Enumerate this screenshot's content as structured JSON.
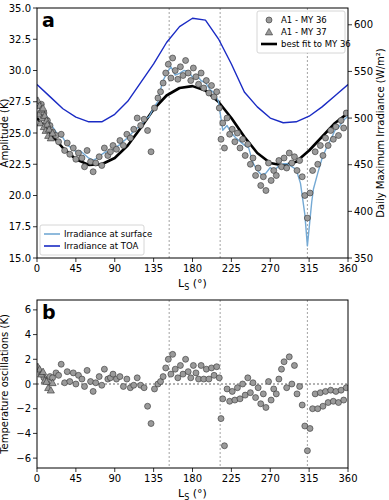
{
  "chart_data": [
    {
      "type": "scatter",
      "title": "a",
      "x_label": "LS (°)",
      "y_label": "Amplitude (K)",
      "y2_label": "Daily Maximum Irradiance (W/m²)",
      "xlim": [
        0,
        360
      ],
      "xticks": [
        0,
        45,
        90,
        135,
        180,
        225,
        270,
        315,
        360
      ],
      "ylim": [
        15,
        35
      ],
      "yticks": [
        {
          "value": 15,
          "label": "15.0"
        },
        {
          "value": 17.5,
          "label": "17.5"
        },
        {
          "value": 20,
          "label": "20.0"
        },
        {
          "value": 22.5,
          "label": "22.5"
        },
        {
          "value": 25,
          "label": "25.0"
        },
        {
          "value": 27.5,
          "label": "27.5"
        },
        {
          "value": 30,
          "label": "30.0"
        },
        {
          "value": 32.5,
          "label": "32.5"
        },
        {
          "value": 35,
          "label": "35.0"
        }
      ],
      "y2lim": [
        350,
        618
      ],
      "y2ticks": [
        350,
        400,
        450,
        500,
        550,
        600
      ],
      "vlines": [
        153,
        212,
        313
      ],
      "legend": "upper right",
      "series": [
        {
          "name": "A1 - MY 36",
          "type": "scatter",
          "marker": "circle",
          "color": "#9a9a9a",
          "x": [
            5,
            8,
            12,
            15,
            18,
            22,
            25,
            28,
            32,
            35,
            38,
            42,
            45,
            48,
            52,
            55,
            58,
            62,
            65,
            68,
            72,
            75,
            78,
            82,
            85,
            88,
            92,
            96,
            100,
            104,
            108,
            112,
            116,
            120,
            124,
            128,
            132,
            136,
            140,
            143,
            146,
            149,
            152,
            155,
            157,
            160,
            163,
            166,
            169,
            172,
            175,
            178,
            181,
            184,
            187,
            190,
            193,
            196,
            199,
            202,
            205,
            208,
            211,
            213,
            215,
            217,
            220,
            223,
            226,
            229,
            232,
            235,
            238,
            241,
            244,
            247,
            250,
            253,
            256,
            259,
            262,
            265,
            268,
            271,
            274,
            277,
            280,
            283,
            286,
            289,
            292,
            295,
            298,
            301,
            304,
            307,
            310,
            313,
            316,
            319,
            322,
            325,
            328,
            331,
            334,
            337,
            340,
            343,
            346,
            349,
            352,
            355,
            358
          ],
          "values": [
            27.3,
            26.6,
            26.0,
            25.6,
            25.1,
            24.8,
            24.3,
            24.9,
            23.6,
            24.2,
            23.3,
            23.8,
            22.9,
            23.4,
            23.0,
            22.3,
            23.6,
            22.7,
            21.9,
            22.6,
            23.1,
            22.4,
            23.8,
            23.2,
            23.5,
            24.0,
            23.7,
            24.4,
            24.0,
            24.9,
            24.6,
            25.3,
            26.2,
            25.6,
            26.1,
            25.2,
            23.5,
            27.0,
            27.8,
            28.3,
            29.0,
            29.8,
            30.5,
            29.4,
            31.0,
            30.0,
            29.3,
            30.3,
            29.6,
            30.8,
            29.8,
            29.2,
            30.2,
            29.5,
            28.9,
            29.8,
            28.6,
            29.2,
            28.2,
            28.8,
            27.9,
            28.3,
            27.0,
            24.5,
            25.8,
            23.8,
            26.2,
            24.9,
            25.3,
            24.3,
            25.0,
            23.8,
            24.5,
            23.2,
            24.1,
            22.5,
            23.0,
            21.6,
            22.2,
            20.8,
            21.5,
            20.4,
            22.6,
            21.2,
            22.0,
            21.6,
            22.8,
            22.3,
            23.0,
            22.2,
            23.4,
            22.6,
            23.1,
            22.0,
            22.8,
            21.5,
            20.0,
            18.2,
            20.2,
            22.0,
            23.5,
            22.5,
            24.0,
            23.2,
            24.6,
            24.0,
            25.2,
            24.5,
            25.5,
            24.8,
            26.0,
            25.4,
            26.6
          ]
        },
        {
          "name": "A1 - MY 37",
          "type": "scatter",
          "marker": "triangle",
          "color": "#9a9a9a",
          "x": [
            1,
            2,
            3,
            4,
            5,
            6,
            7,
            8,
            9,
            10,
            11,
            12,
            13,
            14,
            16,
            18
          ],
          "values": [
            27.6,
            26.5,
            27.2,
            25.8,
            26.9,
            26.2,
            27.0,
            25.5,
            26.4,
            25.2,
            26.0,
            25.7,
            24.8,
            25.3,
            24.6,
            25.0
          ]
        },
        {
          "name": "best fit to MY 36",
          "type": "line",
          "line_style": "solid",
          "color": "#000000",
          "x": [
            0,
            15,
            30,
            45,
            60,
            75,
            90,
            105,
            120,
            135,
            150,
            165,
            180,
            195,
            210,
            225,
            240,
            255,
            270,
            285,
            300,
            315,
            330,
            345,
            360
          ],
          "values": [
            26.2,
            25.0,
            23.8,
            22.9,
            22.45,
            22.5,
            23.0,
            24.0,
            25.4,
            26.9,
            28.0,
            28.6,
            28.75,
            28.4,
            27.5,
            26.2,
            24.7,
            23.4,
            22.6,
            22.4,
            22.7,
            23.6,
            24.7,
            25.8,
            26.6
          ]
        },
        {
          "name": "Irradiance at surface",
          "type": "line",
          "line_style": "solid",
          "color": "#74a9d4",
          "axis": "y2",
          "x": [
            0,
            5,
            10,
            15,
            20,
            25,
            30,
            35,
            40,
            45,
            50,
            55,
            60,
            65,
            70,
            75,
            80,
            85,
            90,
            95,
            100,
            105,
            110,
            115,
            120,
            125,
            130,
            135,
            140,
            145,
            150,
            155,
            160,
            165,
            170,
            175,
            180,
            185,
            190,
            195,
            200,
            205,
            210,
            215,
            220,
            225,
            230,
            235,
            240,
            245,
            250,
            255,
            260,
            265,
            270,
            275,
            280,
            285,
            290,
            295,
            300,
            305,
            310,
            313,
            318,
            320,
            325,
            330,
            335,
            340,
            345,
            350,
            355,
            360
          ],
          "values": [
            514,
            508,
            504,
            495,
            488,
            481,
            479,
            471,
            468,
            464,
            465,
            461,
            457,
            455,
            457,
            461,
            464,
            463,
            468,
            471,
            475,
            479,
            484,
            489,
            491,
            498,
            502,
            511,
            518,
            538,
            548,
            555,
            546,
            548,
            551,
            550,
            544,
            546,
            540,
            538,
            531,
            527,
            518,
            487,
            492,
            484,
            479,
            475,
            471,
            468,
            452,
            444,
            439,
            441,
            447,
            444,
            449,
            451,
            451,
            448,
            445,
            430,
            397,
            363,
            410,
            424,
            441,
            457,
            468,
            477,
            487,
            491,
            498,
            502
          ]
        },
        {
          "name": "Irradiance at TOA",
          "type": "line",
          "line_style": "solid",
          "color": "#1a2bc4",
          "axis": "y2",
          "x": [
            0,
            15,
            30,
            45,
            60,
            75,
            90,
            105,
            120,
            135,
            150,
            165,
            180,
            195,
            210,
            225,
            240,
            255,
            270,
            285,
            300,
            315,
            330,
            345,
            360
          ],
          "values": [
            536,
            523,
            510,
            501,
            496,
            496,
            504,
            518,
            538,
            558,
            581,
            598,
            607,
            605,
            585,
            558,
            528,
            512,
            500,
            495,
            496,
            502,
            512,
            524,
            536
          ]
        }
      ]
    },
    {
      "type": "scatter",
      "title": "b",
      "x_label": "LS (°)",
      "y_label": "Temperature oscillations (K)",
      "xlim": [
        0,
        360
      ],
      "xticks": [
        0,
        45,
        90,
        135,
        180,
        225,
        270,
        315,
        360
      ],
      "ylim": [
        -6.8,
        6.8
      ],
      "yticks": [
        {
          "value": -6,
          "label": "−6"
        },
        {
          "value": -4,
          "label": "−4"
        },
        {
          "value": -2,
          "label": "−2"
        },
        0,
        2,
        4,
        6
      ],
      "vlines": [
        153,
        212,
        313
      ],
      "hlines": [
        0
      ],
      "series": [
        {
          "name": "A1 - MY 36",
          "type": "scatter",
          "marker": "circle",
          "color": "#9a9a9a",
          "x": [
            5,
            8,
            12,
            15,
            18,
            22,
            25,
            28,
            32,
            35,
            38,
            42,
            45,
            48,
            52,
            55,
            58,
            62,
            65,
            68,
            72,
            75,
            78,
            82,
            85,
            88,
            92,
            96,
            100,
            104,
            108,
            112,
            116,
            120,
            124,
            128,
            132,
            136,
            140,
            143,
            146,
            149,
            152,
            155,
            157,
            160,
            163,
            166,
            169,
            172,
            175,
            178,
            181,
            184,
            187,
            190,
            193,
            196,
            199,
            202,
            205,
            208,
            211,
            213,
            215,
            217,
            220,
            223,
            226,
            229,
            232,
            235,
            238,
            241,
            244,
            247,
            250,
            253,
            256,
            259,
            262,
            265,
            268,
            271,
            274,
            277,
            280,
            283,
            286,
            289,
            292,
            295,
            298,
            301,
            304,
            307,
            310,
            313,
            316,
            319,
            322,
            325,
            328,
            331,
            334,
            337,
            340,
            343,
            346,
            349,
            352,
            355,
            358
          ],
          "values": [
            0.8,
            0.5,
            0.3,
            0.6,
            0.5,
            0.9,
            0.7,
            1.6,
            0.1,
            1.0,
            0.2,
            0.9,
            0.0,
            0.7,
            0.4,
            -0.2,
            1.1,
            0.2,
            -0.6,
            0.1,
            0.6,
            -0.1,
            1.2,
            0.4,
            0.5,
            0.8,
            0.4,
            0.6,
            -0.2,
            0.4,
            -0.3,
            -0.1,
            0.5,
            -0.1,
            -0.3,
            -1.8,
            -3.2,
            -0.4,
            0.0,
            0.2,
            0.6,
            1.3,
            2.0,
            0.8,
            2.4,
            1.2,
            0.5,
            1.5,
            0.8,
            2.0,
            1.0,
            0.5,
            1.5,
            0.9,
            0.4,
            1.5,
            0.4,
            1.2,
            0.4,
            1.3,
            0.7,
            1.4,
            0.5,
            -2.8,
            -1.2,
            -5.0,
            -0.4,
            -1.4,
            -0.6,
            -1.3,
            -0.3,
            -1.2,
            0.0,
            -0.9,
            0.5,
            -0.7,
            0.1,
            -1.1,
            -0.3,
            -1.6,
            -0.8,
            -1.9,
            0.2,
            -1.3,
            -0.4,
            -0.8,
            0.4,
            1.2,
            1.8,
            -0.3,
            2.2,
            0.0,
            1.5,
            -0.8,
            -0.2,
            -1.7,
            -3.4,
            -5.4,
            -3.6,
            -2.0,
            -0.8,
            -2.0,
            -0.7,
            -1.8,
            -0.6,
            -1.5,
            -0.5,
            -1.4,
            -0.6,
            -1.5,
            -0.5,
            -1.3,
            -0.3
          ]
        },
        {
          "name": "A1 - MY 37",
          "type": "scatter",
          "marker": "triangle",
          "color": "#9a9a9a",
          "x": [
            1,
            3,
            5,
            7,
            9,
            11,
            13,
            16,
            18
          ],
          "values": [
            1.4,
            1.2,
            0.8,
            1.0,
            0.3,
            0.2,
            -0.3,
            -0.5,
            0.1
          ]
        }
      ]
    }
  ]
}
